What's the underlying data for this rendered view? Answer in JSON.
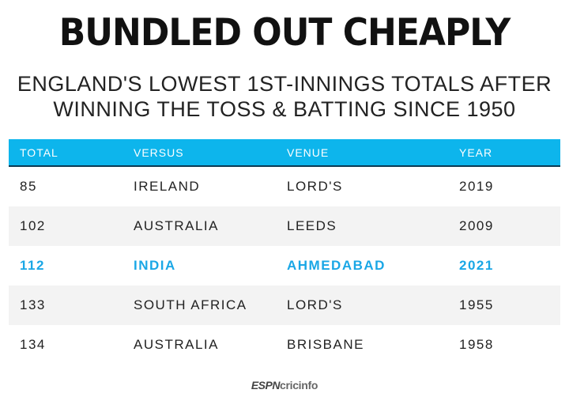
{
  "title": "BUNDLED OUT CHEAPLY",
  "subtitle": {
    "line1": "ENGLAND'S LOWEST 1ST-INNINGS TOTALS AFTER",
    "line2": "WINNING THE TOSS & BATTING SINCE 1950"
  },
  "table": {
    "headers": [
      "TOTAL",
      "VERSUS",
      "VENUE",
      "YEAR"
    ],
    "rows": [
      {
        "total": "85",
        "versus": "IRELAND",
        "venue": "LORD'S",
        "year": "2019"
      },
      {
        "total": "102",
        "versus": "AUSTRALIA",
        "venue": "LEEDS",
        "year": "2009"
      },
      {
        "total": "112",
        "versus": "INDIA",
        "venue": "AHMEDABAD",
        "year": "2021"
      },
      {
        "total": "133",
        "versus": "SOUTH AFRICA",
        "venue": "LORD'S",
        "year": "1955"
      },
      {
        "total": "134",
        "versus": "AUSTRALIA",
        "venue": "BRISBANE",
        "year": "1958"
      }
    ],
    "highlight_row": 2
  },
  "logo": {
    "espn": "ESPN",
    "cricinfo": "cricinfo"
  },
  "colors": {
    "header_bg": "#0db5ec",
    "highlight_text": "#1aa7e6",
    "stripe": "#f3f3f3"
  }
}
